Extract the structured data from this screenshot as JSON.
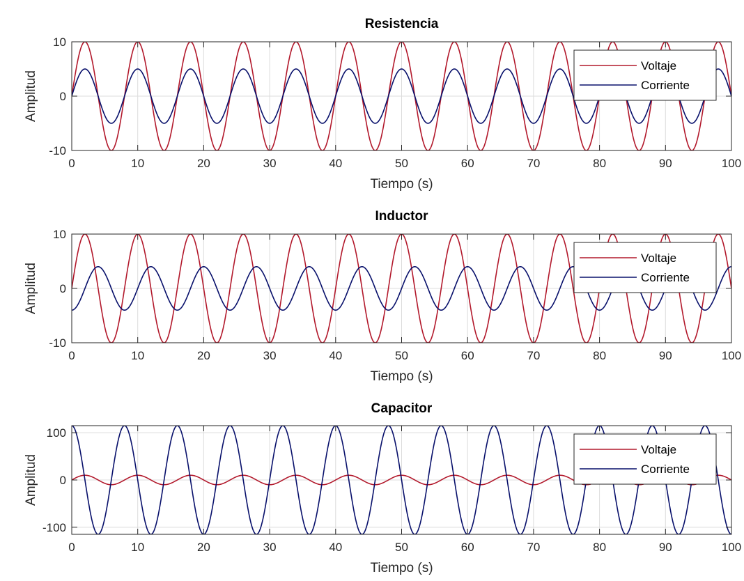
{
  "chart_data": [
    {
      "type": "line",
      "title": "Resistencia",
      "xlabel": "Tiempo (s)",
      "ylabel": "Amplitud",
      "xlim": [
        0,
        100
      ],
      "ylim": [
        -10,
        10
      ],
      "xticks": [
        "0",
        "10",
        "20",
        "30",
        "40",
        "50",
        "60",
        "70",
        "80",
        "90",
        "100"
      ],
      "yticks": [
        "-10",
        "0",
        "10"
      ],
      "grid": true,
      "legend_position": "top-right",
      "series": [
        {
          "name": "Voltaje",
          "color": "#b2182b",
          "function": "sine",
          "amplitude": 10,
          "period": 8,
          "phase_deg": 0
        },
        {
          "name": "Corriente",
          "color": "#08106b",
          "function": "sine",
          "amplitude": 5,
          "period": 8,
          "phase_deg": 0
        }
      ]
    },
    {
      "type": "line",
      "title": "Inductor",
      "xlabel": "Tiempo (s)",
      "ylabel": "Amplitud",
      "xlim": [
        0,
        100
      ],
      "ylim": [
        -10,
        10
      ],
      "xticks": [
        "0",
        "10",
        "20",
        "30",
        "40",
        "50",
        "60",
        "70",
        "80",
        "90",
        "100"
      ],
      "yticks": [
        "-10",
        "0",
        "10"
      ],
      "grid": true,
      "legend_position": "top-right",
      "series": [
        {
          "name": "Voltaje",
          "color": "#b2182b",
          "function": "sine",
          "amplitude": 10,
          "period": 8,
          "phase_deg": 0
        },
        {
          "name": "Corriente",
          "color": "#08106b",
          "function": "sine",
          "amplitude": 4,
          "period": 8,
          "phase_deg": -90
        }
      ]
    },
    {
      "type": "line",
      "title": "Capacitor",
      "xlabel": "Tiempo (s)",
      "ylabel": "Amplitud",
      "xlim": [
        0,
        100
      ],
      "ylim": [
        -115,
        115
      ],
      "xticks": [
        "0",
        "10",
        "20",
        "30",
        "40",
        "50",
        "60",
        "70",
        "80",
        "90",
        "100"
      ],
      "yticks": [
        "-100",
        "0",
        "100"
      ],
      "grid": true,
      "legend_position": "top-right",
      "series": [
        {
          "name": "Voltaje",
          "color": "#b2182b",
          "function": "sine",
          "amplitude": 10,
          "period": 8,
          "phase_deg": 0
        },
        {
          "name": "Corriente",
          "color": "#08106b",
          "function": "sine",
          "amplitude": 115,
          "period": 8,
          "phase_deg": 90
        }
      ]
    }
  ]
}
